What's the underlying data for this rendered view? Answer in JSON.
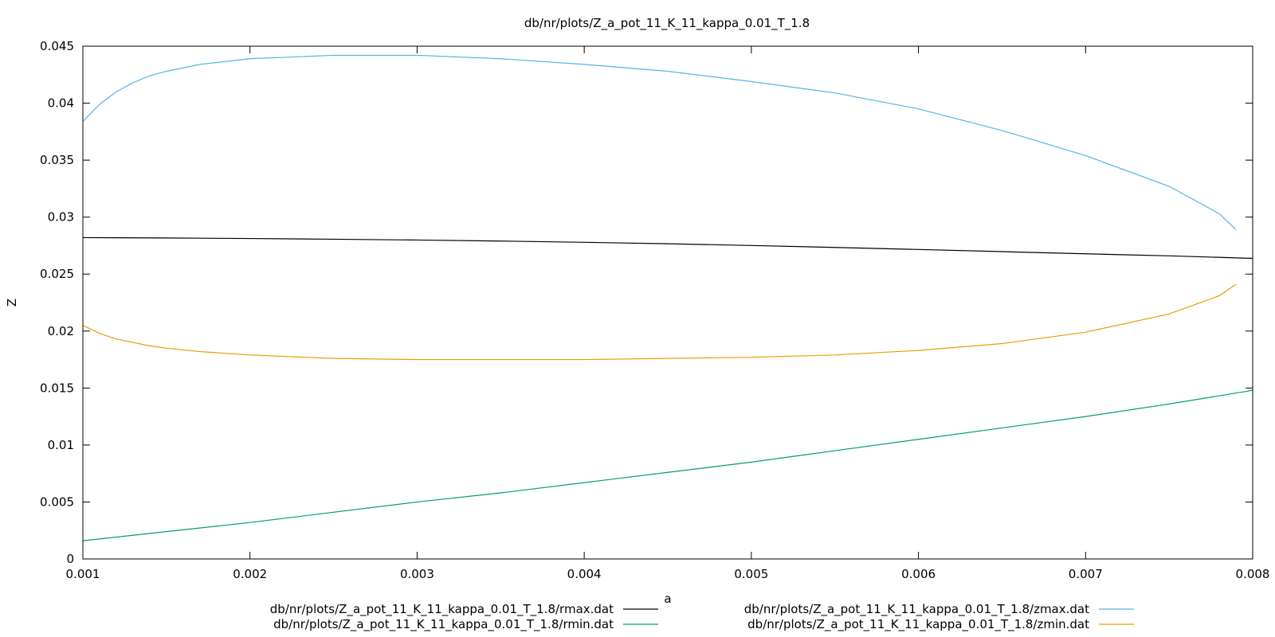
{
  "chart_data": {
    "type": "line",
    "title": "db/nr/plots/Z_a_pot_11_K_11_kappa_0.01_T_1.8",
    "xlabel": "a",
    "ylabel": "Z",
    "xlim": [
      0.001,
      0.008
    ],
    "ylim": [
      0,
      0.045
    ],
    "x_ticks": [
      "0.001",
      "0.002",
      "0.003",
      "0.004",
      "0.005",
      "0.006",
      "0.007",
      "0.008"
    ],
    "y_ticks": [
      "0",
      "0.005",
      "0.01",
      "0.015",
      "0.02",
      "0.025",
      "0.03",
      "0.035",
      "0.04",
      "0.045"
    ],
    "grid": false,
    "legend_position": "bottom",
    "series": [
      {
        "name": "db/nr/plots/Z_a_pot_11_K_11_kappa_0.01_T_1.8/rmax.dat",
        "color": "#000000",
        "x": [
          0.001,
          0.0015,
          0.002,
          0.0025,
          0.003,
          0.0035,
          0.004,
          0.0045,
          0.005,
          0.0055,
          0.006,
          0.0065,
          0.007,
          0.0075,
          0.008
        ],
        "y": [
          0.0282,
          0.02817,
          0.02812,
          0.02806,
          0.02799,
          0.0279,
          0.02779,
          0.02766,
          0.02751,
          0.02734,
          0.02716,
          0.02697,
          0.02678,
          0.0266,
          0.02638
        ]
      },
      {
        "name": "db/nr/plots/Z_a_pot_11_K_11_kappa_0.01_T_1.8/rmin.dat",
        "color": "#009e73",
        "x": [
          0.001,
          0.0015,
          0.002,
          0.0025,
          0.003,
          0.0035,
          0.004,
          0.0045,
          0.005,
          0.0055,
          0.006,
          0.0065,
          0.007,
          0.0075,
          0.008
        ],
        "y": [
          0.0016,
          0.0024,
          0.0032,
          0.0041,
          0.005,
          0.0058,
          0.0067,
          0.0076,
          0.0085,
          0.0095,
          0.0105,
          0.0115,
          0.0125,
          0.0136,
          0.0148
        ]
      },
      {
        "name": "db/nr/plots/Z_a_pot_11_K_11_kappa_0.01_T_1.8/zmax.dat",
        "color": "#56b4e9",
        "x": [
          0.001,
          0.0011,
          0.0012,
          0.0013,
          0.0014,
          0.0015,
          0.0017,
          0.002,
          0.0025,
          0.003,
          0.0035,
          0.004,
          0.0045,
          0.005,
          0.0055,
          0.006,
          0.0065,
          0.007,
          0.0075,
          0.0078,
          0.0079
        ],
        "y": [
          0.0384,
          0.0399,
          0.041,
          0.0418,
          0.0424,
          0.0428,
          0.0434,
          0.0439,
          0.0442,
          0.0442,
          0.0439,
          0.0434,
          0.0428,
          0.0419,
          0.0409,
          0.0395,
          0.0376,
          0.0354,
          0.0327,
          0.0303,
          0.0289
        ]
      },
      {
        "name": "db/nr/plots/Z_a_pot_11_K_11_kappa_0.01_T_1.8/zmin.dat",
        "color": "#e69f00",
        "x": [
          0.001,
          0.0011,
          0.0012,
          0.0013,
          0.0014,
          0.0015,
          0.0017,
          0.002,
          0.0025,
          0.003,
          0.0035,
          0.004,
          0.0045,
          0.005,
          0.0055,
          0.006,
          0.0065,
          0.007,
          0.0075,
          0.0078,
          0.0079
        ],
        "y": [
          0.0205,
          0.0198,
          0.0193,
          0.019,
          0.0187,
          0.0185,
          0.0182,
          0.0179,
          0.0176,
          0.0175,
          0.0175,
          0.0175,
          0.0176,
          0.0177,
          0.0179,
          0.0183,
          0.0189,
          0.0199,
          0.0215,
          0.0231,
          0.0241
        ]
      }
    ]
  }
}
